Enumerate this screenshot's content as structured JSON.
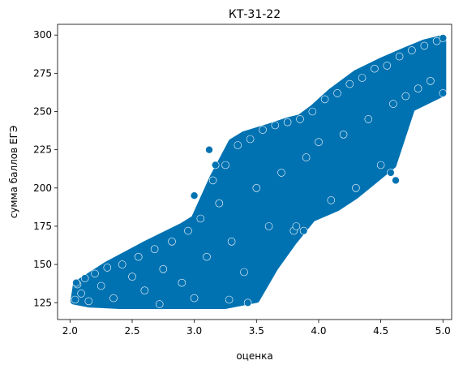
{
  "chart_data": {
    "type": "scatter",
    "title": "КТ-31-22",
    "xlabel": "оценка",
    "ylabel": "сумма баллов ЕГЭ",
    "xlim": [
      1.9,
      5.07
    ],
    "ylim": [
      114,
      307
    ],
    "x_ticks": [
      2.0,
      2.5,
      3.0,
      3.5,
      4.0,
      4.5,
      5.0
    ],
    "x_tick_labels": [
      "2.0",
      "2.5",
      "3.0",
      "3.5",
      "4.0",
      "4.5",
      "5.0"
    ],
    "y_ticks": [
      125,
      150,
      175,
      200,
      225,
      250,
      275,
      300
    ],
    "y_tick_labels": [
      "125",
      "150",
      "175",
      "200",
      "225",
      "250",
      "275",
      "300"
    ],
    "grid": false,
    "legend": false,
    "marker_color": "#0072b2",
    "marker_edge_color": "#ffffff",
    "region_outline": {
      "x": [
        2.03,
        2.05,
        2.3,
        2.6,
        2.9,
        3.0,
        3.15,
        3.3,
        3.4,
        3.6,
        3.75,
        3.85,
        3.95,
        4.1,
        4.3,
        4.5,
        4.7,
        4.85,
        5.0,
        5.0,
        4.75,
        4.6,
        4.45,
        4.3,
        4.15,
        3.95,
        3.8,
        3.65,
        3.5,
        3.25,
        3.0,
        2.7,
        2.4,
        2.15
      ],
      "y": [
        126,
        137,
        150,
        163,
        175,
        180,
        207,
        230,
        235,
        240,
        244,
        246,
        252,
        263,
        275,
        283,
        290,
        295,
        298,
        262,
        252,
        215,
        205,
        195,
        187,
        180,
        165,
        148,
        127,
        123,
        123,
        123,
        123,
        124
      ]
    },
    "series": [
      {
        "points": [
          [
            2.04,
            127
          ],
          [
            2.06,
            137
          ],
          [
            2.09,
            131
          ],
          [
            2.12,
            141
          ],
          [
            2.15,
            126
          ],
          [
            2.2,
            144
          ],
          [
            2.25,
            136
          ],
          [
            2.3,
            148
          ],
          [
            2.35,
            128
          ],
          [
            2.42,
            150
          ],
          [
            2.5,
            142
          ],
          [
            2.55,
            155
          ],
          [
            2.6,
            133
          ],
          [
            2.68,
            160
          ],
          [
            2.75,
            147
          ],
          [
            2.82,
            165
          ],
          [
            2.9,
            138
          ],
          [
            2.95,
            172
          ],
          [
            3.0,
            128
          ],
          [
            3.05,
            180
          ],
          [
            3.1,
            155
          ],
          [
            3.15,
            205
          ],
          [
            3.2,
            190
          ],
          [
            3.25,
            215
          ],
          [
            3.3,
            165
          ],
          [
            3.35,
            228
          ],
          [
            3.4,
            145
          ],
          [
            3.45,
            232
          ],
          [
            3.5,
            200
          ],
          [
            3.55,
            238
          ],
          [
            3.6,
            175
          ],
          [
            3.65,
            241
          ],
          [
            3.7,
            210
          ],
          [
            3.75,
            243
          ],
          [
            3.8,
            172
          ],
          [
            3.85,
            245
          ],
          [
            3.9,
            220
          ],
          [
            3.95,
            250
          ],
          [
            4.0,
            230
          ],
          [
            4.05,
            258
          ],
          [
            4.1,
            192
          ],
          [
            4.15,
            262
          ],
          [
            4.2,
            235
          ],
          [
            4.25,
            268
          ],
          [
            4.3,
            200
          ],
          [
            4.35,
            272
          ],
          [
            4.4,
            245
          ],
          [
            4.45,
            278
          ],
          [
            4.5,
            215
          ],
          [
            4.55,
            280
          ],
          [
            4.6,
            255
          ],
          [
            4.65,
            286
          ],
          [
            4.7,
            260
          ],
          [
            4.75,
            290
          ],
          [
            4.8,
            265
          ],
          [
            4.85,
            293
          ],
          [
            4.9,
            270
          ],
          [
            4.95,
            296
          ],
          [
            5.0,
            298
          ],
          [
            5.0,
            262
          ],
          [
            3.12,
            225
          ],
          [
            3.17,
            215
          ],
          [
            3.0,
            195
          ],
          [
            3.82,
            175
          ],
          [
            3.88,
            172
          ],
          [
            4.58,
            210
          ],
          [
            4.62,
            205
          ],
          [
            3.43,
            125
          ],
          [
            3.28,
            127
          ],
          [
            2.72,
            124
          ],
          [
            2.05,
            138
          ]
        ]
      }
    ]
  }
}
